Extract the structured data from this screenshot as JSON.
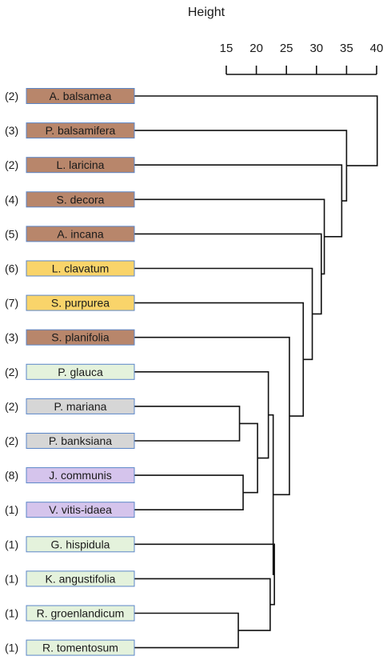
{
  "axis": {
    "title": "Height",
    "ticks": [
      15,
      20,
      25,
      30,
      35,
      40
    ],
    "range": [
      15,
      40
    ]
  },
  "group_colors": {
    "brown": "#b8866b",
    "yellow": "#f9d46a",
    "lightgreen": "#e4f2dc",
    "gray": "#d6d6d6",
    "purple": "#d5c4ec",
    "border": "#5b86c8"
  },
  "leaves": [
    {
      "name": "A. balsamea",
      "count": "(2)",
      "group": "brown"
    },
    {
      "name": "P. balsamifera",
      "count": "(3)",
      "group": "brown"
    },
    {
      "name": "L. laricina",
      "count": "(2)",
      "group": "brown"
    },
    {
      "name": "S. decora",
      "count": "(4)",
      "group": "brown"
    },
    {
      "name": "A. incana",
      "count": "(5)",
      "group": "brown"
    },
    {
      "name": "L. clavatum",
      "count": "(6)",
      "group": "yellow"
    },
    {
      "name": "S. purpurea",
      "count": "(7)",
      "group": "yellow"
    },
    {
      "name": "S. planifolia",
      "count": "(3)",
      "group": "brown"
    },
    {
      "name": "P. glauca",
      "count": "(2)",
      "group": "lightgreen"
    },
    {
      "name": "P. mariana",
      "count": "(2)",
      "group": "gray"
    },
    {
      "name": "P. banksiana",
      "count": "(2)",
      "group": "gray"
    },
    {
      "name": "J. communis",
      "count": "(8)",
      "group": "purple"
    },
    {
      "name": "V. vitis-idaea",
      "count": "(1)",
      "group": "purple"
    },
    {
      "name": "G. hispidula",
      "count": "(1)",
      "group": "lightgreen"
    },
    {
      "name": "K. angustifolia",
      "count": "(1)",
      "group": "lightgreen"
    },
    {
      "name": "R. groenlandicum",
      "count": "(1)",
      "group": "lightgreen"
    },
    {
      "name": "R. tomentosum",
      "count": "(1)",
      "group": "lightgreen"
    }
  ],
  "merges": [
    {
      "id": "m1",
      "a": "L9",
      "b": "L10",
      "height": 17.2
    },
    {
      "id": "m2",
      "a": "L11",
      "b": "L12",
      "height": 17.8
    },
    {
      "id": "m3",
      "a": "L15",
      "b": "L16",
      "height": 17.0
    },
    {
      "id": "m4",
      "a": "m1",
      "b": "m2",
      "height": 20.2
    },
    {
      "id": "m5",
      "a": "L8",
      "b": "m4",
      "height": 22.0
    },
    {
      "id": "m6",
      "a": "L14",
      "b": "m3",
      "height": 22.3
    },
    {
      "id": "m7",
      "a": "L13",
      "b": "m6",
      "height": 23.0
    },
    {
      "id": "m8",
      "a": "m5",
      "b": "m7",
      "height": 22.8
    },
    {
      "id": "m9",
      "a": "L7",
      "b": "m8",
      "height": 25.5
    },
    {
      "id": "m10",
      "a": "L6",
      "b": "m9",
      "height": 27.8
    },
    {
      "id": "m11",
      "a": "L5",
      "b": "m10",
      "height": 29.3
    },
    {
      "id": "m12",
      "a": "L4",
      "b": "m11",
      "height": 30.8
    },
    {
      "id": "m13",
      "a": "L3",
      "b": "m12",
      "height": 31.3
    },
    {
      "id": "m14",
      "a": "L2",
      "b": "m13",
      "height": 34.2
    },
    {
      "id": "m15",
      "a": "L1",
      "b": "m14",
      "height": 35.0
    },
    {
      "id": "m16",
      "a": "L0",
      "b": "m15",
      "height": 40.1
    }
  ]
}
